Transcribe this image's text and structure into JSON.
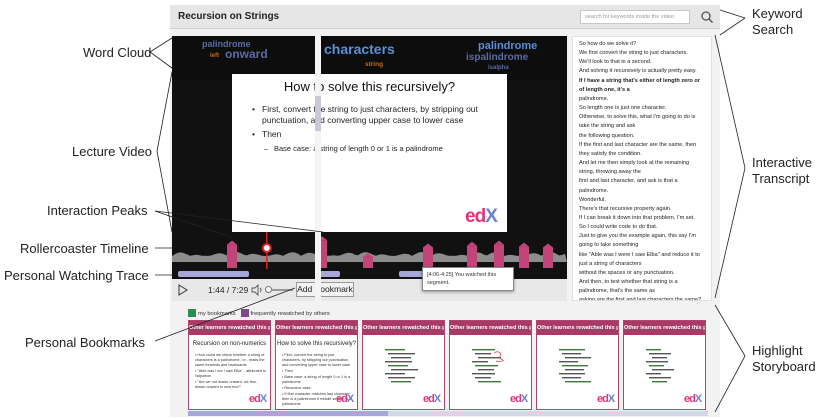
{
  "callouts": {
    "word_cloud": "Word Cloud",
    "lecture_video": "Lecture Video",
    "interaction_peaks": "Interaction Peaks",
    "rollercoaster_timeline": "Rollercoaster Timeline",
    "personal_watching_trace": "Personal Watching Trace",
    "personal_bookmarks": "Personal Bookmarks",
    "keyword_search": [
      "Keyword",
      "Search"
    ],
    "interactive_transcript": [
      "Interactive",
      "Transcript"
    ],
    "highlight_storyboard": [
      "Highlight",
      "Storyboard"
    ]
  },
  "app": {
    "title": "Recursion on Strings",
    "search_placeholder": "search for keywords inside the video"
  },
  "word_cloud": {
    "words": [
      {
        "text": "palindrome",
        "color": "#5b6aa3"
      },
      {
        "text": "onward",
        "color": "#5b6aa3"
      },
      {
        "text": "left",
        "color": "#c76b1a"
      },
      {
        "text": "characters",
        "color": "#5b8fd6"
      },
      {
        "text": "string",
        "color": "#c76b1a"
      },
      {
        "text": "palindrome",
        "color": "#5b8fd6"
      },
      {
        "text": "ispalindrome",
        "color": "#5b6aa3"
      },
      {
        "text": "isalpha",
        "color": "#5b6aa3"
      }
    ]
  },
  "slide": {
    "title": "How to solve this recursively?",
    "bullet1": "First, convert the string to just characters, by stripping out punctuation, and converting upper case to lower case",
    "bullet2": "Then",
    "sub_bullet": "Base case: a string of length 0 or 1 is a palindrome",
    "logo": {
      "left": "ed",
      "right": "X"
    }
  },
  "timeline": {
    "peak_heights": [
      0.62,
      0.78,
      0.18,
      0.52,
      0.58,
      0.62,
      0.55,
      0.52
    ],
    "playhead_fraction": 0.24
  },
  "trace": {
    "segments": [
      [
        0.0,
        0.18
      ],
      [
        0.36,
        0.41
      ],
      [
        0.56,
        0.63
      ]
    ]
  },
  "controls": {
    "current_time": "1:44",
    "duration": "7:29",
    "time_separator": "/",
    "bookmark_label": "Add Bookmark"
  },
  "tooltip": {
    "text": "[4:06-4:25] You watched this segment."
  },
  "transcript": [
    {
      "text": "So how do we solve it?",
      "bold": false
    },
    {
      "text": "We first convert the string to just characters.",
      "bold": false
    },
    {
      "text": "We'll look to that in a second.",
      "bold": false
    },
    {
      "text": "And solving it recursively is actually pretty easy.",
      "bold": false
    },
    {
      "text": "If I have a string that's either of length zero or",
      "bold": true
    },
    {
      "text": "of length one, it's a",
      "bold": true
    },
    {
      "text": "palindrome.",
      "bold": false
    },
    {
      "text": "So length one is just one character.",
      "bold": false
    },
    {
      "text": "Otherwise, to solve this, what I'm going to do is",
      "bold": false
    },
    {
      "text": "take the string and ask",
      "bold": false
    },
    {
      "text": "the following question.",
      "bold": false
    },
    {
      "text": "If the first and last character are the same, then",
      "bold": false
    },
    {
      "text": "they satisfy the condition.",
      "bold": false
    },
    {
      "text": "And let me then simply look at the remaining",
      "bold": false
    },
    {
      "text": "string, throwing away the",
      "bold": false
    },
    {
      "text": "first and last character, and ask is that a",
      "bold": false
    },
    {
      "text": "palindrome.",
      "bold": false
    },
    {
      "text": "Wonderful.",
      "bold": false
    },
    {
      "text": "There's that recursive property again.",
      "bold": false
    },
    {
      "text": "If I can break it down into that problem, I'm set.",
      "bold": false
    },
    {
      "text": "So I could write code to do that.",
      "bold": false
    },
    {
      "text": "Just to give you the example again, this say I'm",
      "bold": false
    },
    {
      "text": "going to take something",
      "bold": false
    },
    {
      "text": "like \"Able was I were I saw Elba\" and reduce it to",
      "bold": false
    },
    {
      "text": "just a string of characters",
      "bold": false
    },
    {
      "text": "without the spaces or any punctuation.",
      "bold": false
    },
    {
      "text": "And then, to test whether that string is a",
      "bold": false
    },
    {
      "text": "palindrome, that's the same as",
      "bold": false
    },
    {
      "text": "asking are the first and last characters the same?",
      "bold": false
    }
  ],
  "filters": {
    "my_bookmarks": "my bookmarks",
    "frequent": "frequently rewatched by others"
  },
  "storyboard": {
    "cards": [
      {
        "header": "Other learners rewatched this part.",
        "title": "Recursion on non-numerics",
        "kind": "text"
      },
      {
        "header": "Other learners rewatched this part.",
        "title": "How to solve this recursively?",
        "kind": "text"
      },
      {
        "header": "Other learners rewatched this part.",
        "title": "",
        "kind": "code"
      },
      {
        "header": "Other learners rewatched this part.",
        "title": "",
        "kind": "code"
      },
      {
        "header": "Other learners rewatched this part.",
        "title": "",
        "kind": "code"
      },
      {
        "header": "Other learners rewatched this part.",
        "title": "",
        "kind": "code"
      }
    ],
    "card1_lines": [
      "How could we check whether a string of characters is a palindrome, i.e., reads the same forwards and backwards",
      "\"Able was I ere I saw Elba\" - attributed to Napoleon",
      "\"Are we not drawn onward, we few, drawn onward to new era?\""
    ],
    "card2_lines": [
      "First, convert the string to just characters, by stripping out punctuation, and converting upper case to lower case",
      "Then",
      "Base case: a string of length 0 or 1 is a palindrome",
      "Recursive case:",
      "If first character matches last character, then is a palindrome if middle section is a palindrome"
    ]
  },
  "colors": {
    "accent": "#a83a67",
    "peak": "#c2457a",
    "trace": "#a6a6d8",
    "playhead": "#e02020"
  }
}
